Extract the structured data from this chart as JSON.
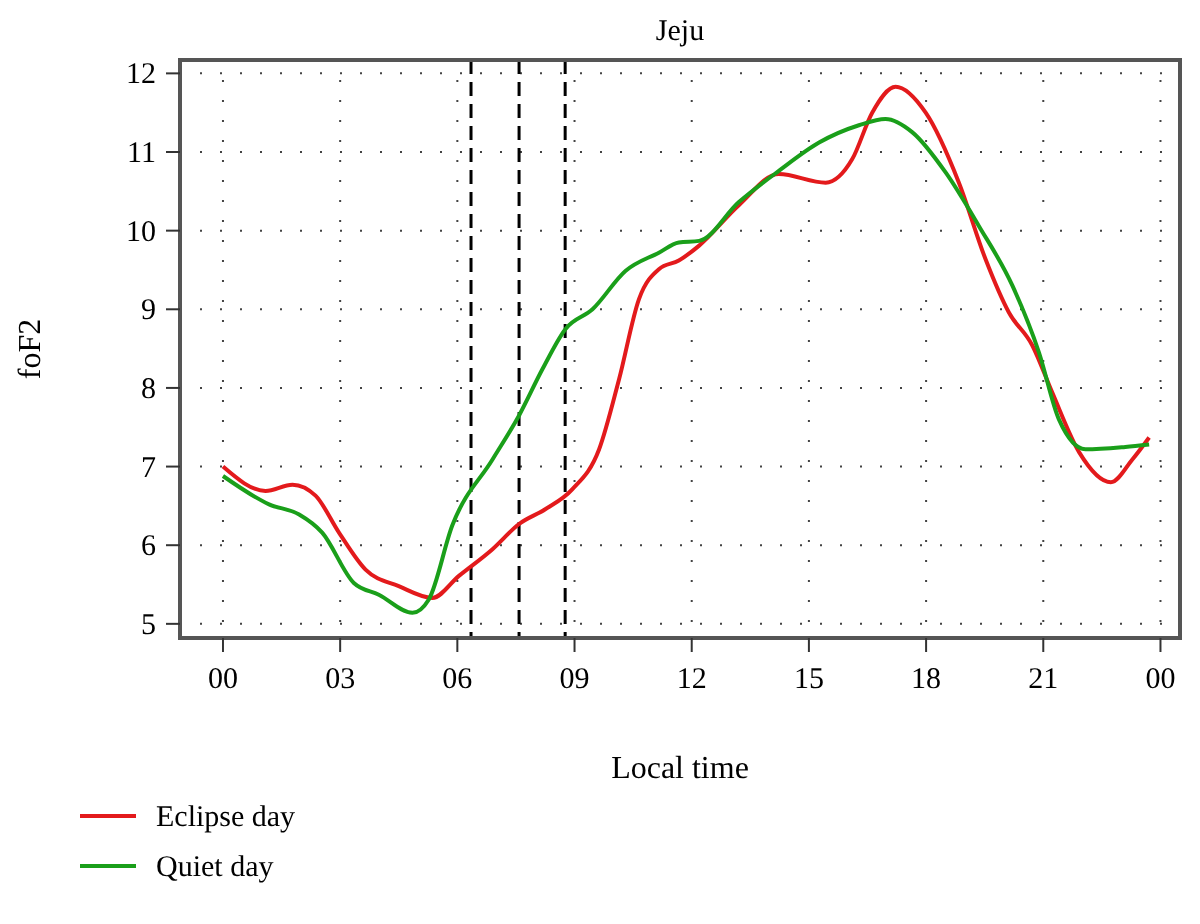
{
  "chart_data": {
    "type": "line",
    "title": "Jeju",
    "xlabel": "Local time",
    "ylabel": "foF2",
    "xlim": [
      -1.1,
      24.5
    ],
    "ylim": [
      4.82,
      12.17
    ],
    "xticks": [
      {
        "value": 0,
        "label": "00"
      },
      {
        "value": 3,
        "label": "03"
      },
      {
        "value": 6,
        "label": "06"
      },
      {
        "value": 9,
        "label": "09"
      },
      {
        "value": 12,
        "label": "12"
      },
      {
        "value": 15,
        "label": "15"
      },
      {
        "value": 18,
        "label": "18"
      },
      {
        "value": 21,
        "label": "21"
      },
      {
        "value": 24,
        "label": "00"
      }
    ],
    "yticks": [
      5,
      6,
      7,
      8,
      9,
      10,
      11,
      12
    ],
    "grid": true,
    "legend": "bottom left",
    "line_style": "solid",
    "marker": "none",
    "ref_lines": [
      {
        "axis": "x",
        "value": 6.35,
        "label": null,
        "line_style": "dashed",
        "color": "#000000"
      },
      {
        "axis": "x",
        "value": 7.58,
        "label": null,
        "line_style": "dashed",
        "color": "#000000"
      },
      {
        "axis": "x",
        "value": 8.76,
        "label": null,
        "line_style": "dashed",
        "color": "#000000"
      }
    ],
    "series": [
      {
        "name": "Eclipse day",
        "color": "#e31a1c",
        "x": [
          0,
          1.09,
          1.78,
          2.37,
          2.97,
          3.65,
          4.5,
          5.36,
          6.04,
          6.9,
          7.58,
          8.26,
          8.94,
          9.63,
          10.14,
          10.65,
          11.16,
          11.67,
          12.19,
          13.2,
          14.23,
          15.43,
          16.11,
          16.62,
          17.22,
          17.99,
          18.84,
          19.52,
          20.12,
          20.72,
          21.23,
          21.92,
          22.73,
          23.28,
          23.71
        ],
        "values": [
          7.0,
          6.69,
          6.77,
          6.63,
          6.16,
          5.69,
          5.48,
          5.33,
          5.61,
          5.95,
          6.27,
          6.46,
          6.71,
          7.22,
          8.11,
          9.13,
          9.51,
          9.62,
          9.81,
          10.32,
          10.72,
          10.61,
          10.91,
          11.5,
          11.83,
          11.5,
          10.61,
          9.64,
          8.96,
          8.54,
          7.94,
          7.18,
          6.8,
          7.09,
          7.37
        ]
      },
      {
        "name": "Quiet day",
        "color": "#1a9f1a",
        "x": [
          0,
          1.18,
          1.95,
          2.54,
          3.35,
          3.99,
          4.85,
          5.27,
          5.87,
          6.9,
          7.58,
          8.18,
          8.77,
          9.46,
          10.31,
          11.16,
          11.67,
          12.19,
          13.2,
          14.23,
          15.26,
          16.28,
          16.96,
          17.65,
          18.5,
          19.35,
          20.21,
          20.89,
          21.4,
          22.08,
          23.1,
          23.71
        ],
        "values": [
          6.88,
          6.52,
          6.39,
          6.16,
          5.52,
          5.37,
          5.14,
          5.31,
          6.25,
          7.09,
          7.65,
          8.24,
          8.75,
          9.0,
          9.49,
          9.72,
          9.85,
          9.87,
          10.36,
          10.76,
          11.12,
          11.34,
          11.42,
          11.25,
          10.74,
          10.06,
          9.3,
          8.45,
          7.6,
          7.22,
          7.25,
          7.28
        ]
      }
    ]
  }
}
